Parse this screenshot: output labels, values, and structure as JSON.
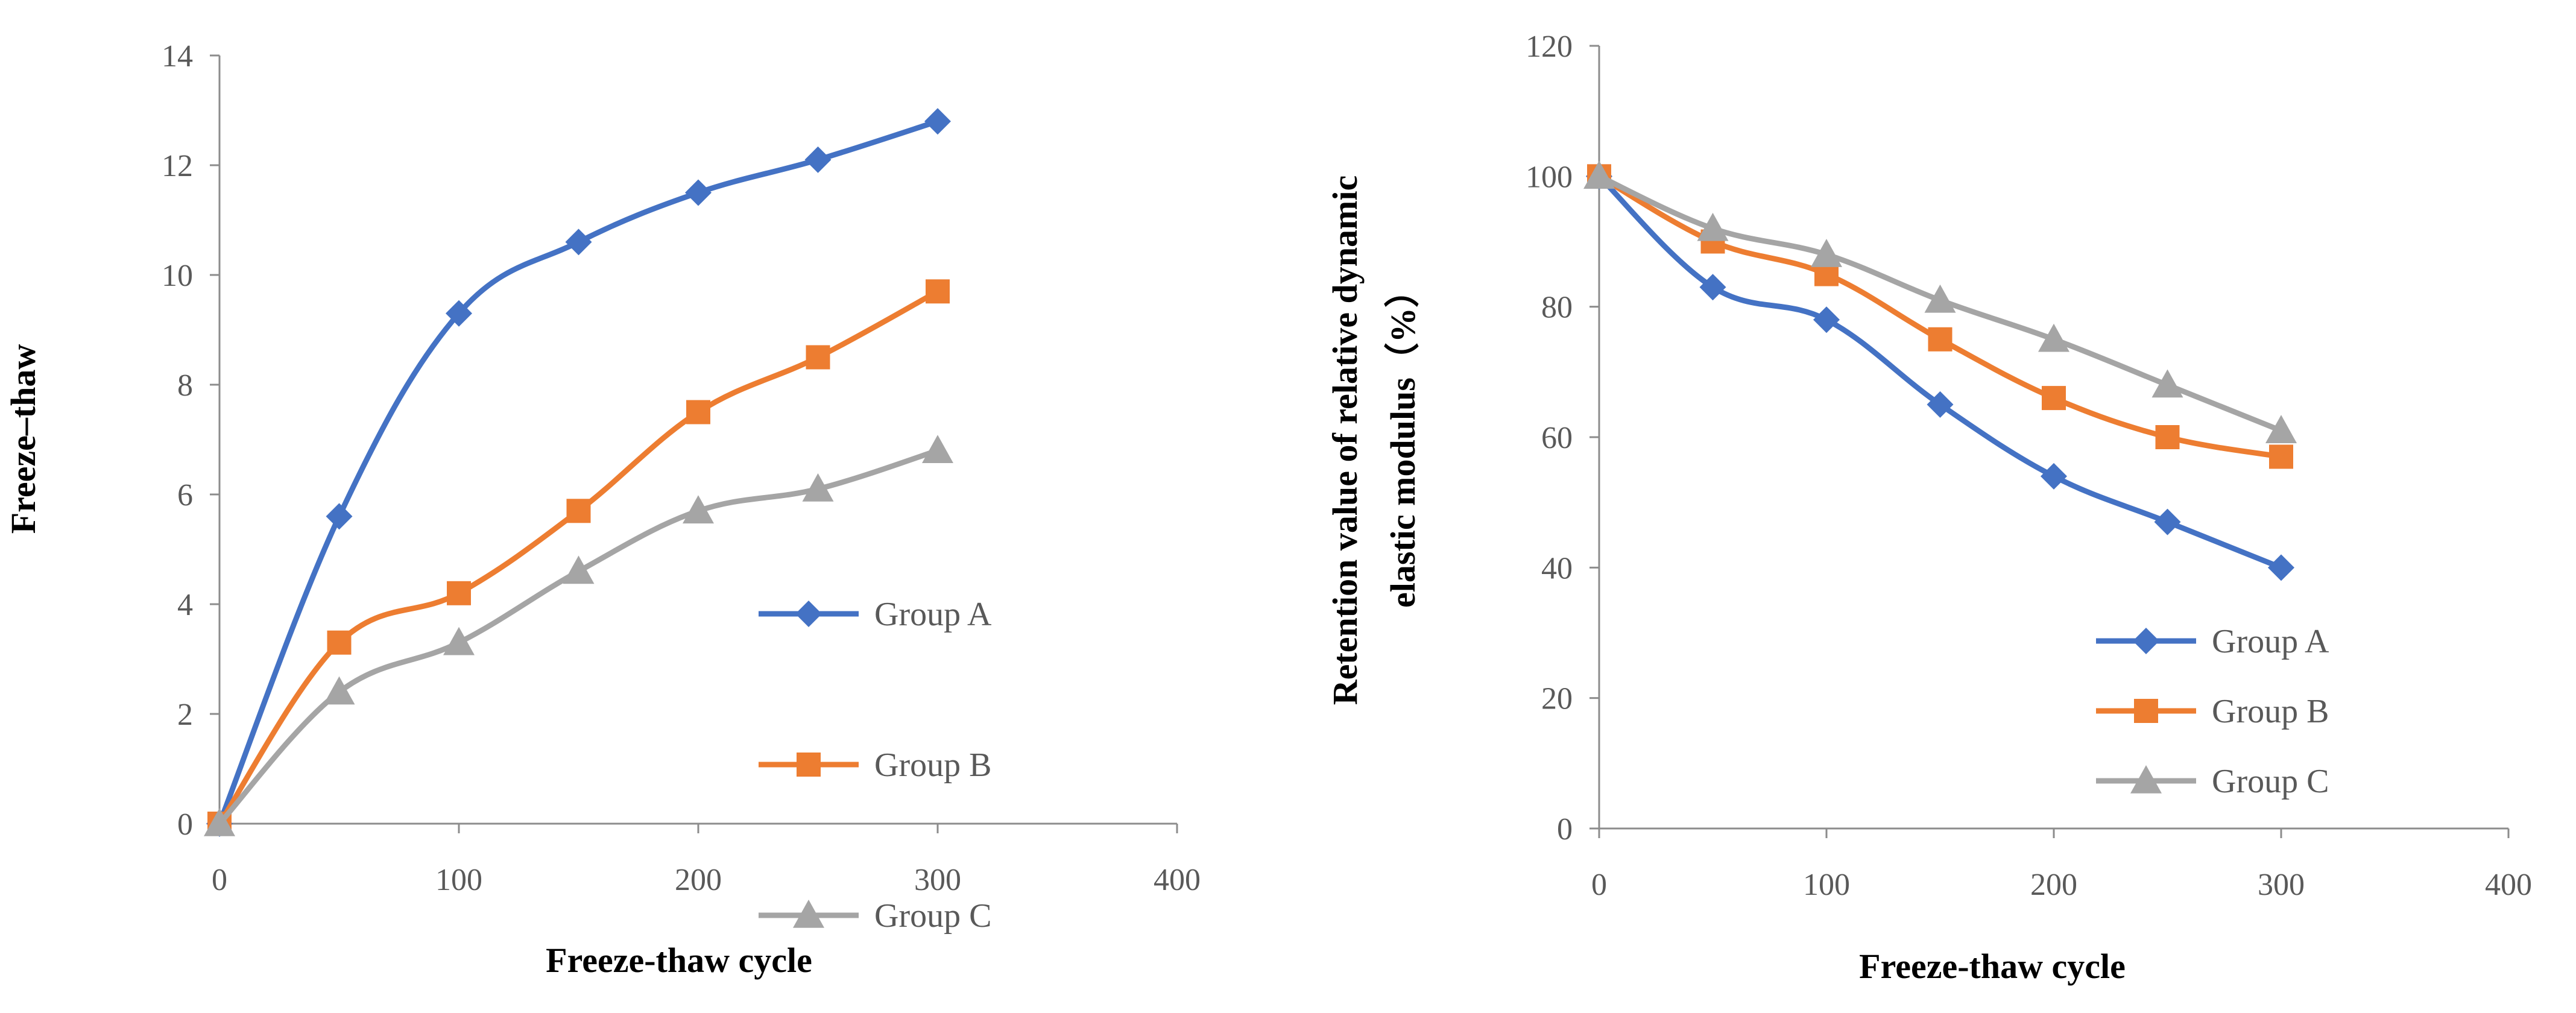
{
  "colors": {
    "group_a": "#4472C4",
    "group_b": "#ED7D31",
    "group_c": "#A5A5A5"
  },
  "chart_data": [
    {
      "type": "line",
      "title": "",
      "xlabel": "Freeze-thaw cycle",
      "ylabel": "Freeze–thaw",
      "xlim": [
        0,
        400
      ],
      "ylim": [
        0,
        14
      ],
      "x_ticks": [
        0,
        100,
        200,
        300,
        400
      ],
      "y_ticks": [
        0,
        2,
        4,
        6,
        8,
        10,
        12,
        14
      ],
      "x_tick_labels": [
        "0",
        "100",
        "200",
        "300",
        "400"
      ],
      "y_tick_labels": [
        "0",
        "2",
        "4",
        "6",
        "8",
        "10",
        "12",
        "14"
      ],
      "grid": false,
      "legend_position": "bottom-right",
      "x": [
        0,
        50,
        100,
        150,
        200,
        250,
        300
      ],
      "series": [
        {
          "name": "Group A",
          "marker": "diamond",
          "values": [
            0,
            5.6,
            9.3,
            10.6,
            11.5,
            12.1,
            12.8
          ]
        },
        {
          "name": "Group B",
          "marker": "square",
          "values": [
            0,
            3.3,
            4.2,
            5.7,
            7.5,
            8.5,
            9.7
          ]
        },
        {
          "name": "Group C",
          "marker": "triangle",
          "values": [
            0,
            2.4,
            3.3,
            4.6,
            5.7,
            6.1,
            6.8
          ]
        }
      ]
    },
    {
      "type": "line",
      "title": "",
      "xlabel": "Freeze-thaw cycle",
      "ylabel": "Retention value of  relative dynamic elastic modulus（%）",
      "ylabel_lines": [
        "Retention value of  relative dynamic",
        "elastic modulus（%）"
      ],
      "xlim": [
        0,
        400
      ],
      "ylim": [
        0,
        120
      ],
      "x_ticks": [
        0,
        100,
        200,
        300,
        400
      ],
      "y_ticks": [
        0,
        20,
        40,
        60,
        80,
        100,
        120
      ],
      "x_tick_labels": [
        "0",
        "100",
        "200",
        "300",
        "400"
      ],
      "y_tick_labels": [
        "0",
        "20",
        "40",
        "60",
        "80",
        "100",
        "120"
      ],
      "grid": false,
      "legend_position": "bottom-right",
      "x": [
        0,
        50,
        100,
        150,
        200,
        250,
        300
      ],
      "series": [
        {
          "name": "Group A",
          "marker": "diamond",
          "values": [
            100,
            83,
            78,
            65,
            54,
            47,
            40
          ]
        },
        {
          "name": "Group B",
          "marker": "square",
          "values": [
            100,
            90,
            85,
            75,
            66,
            60,
            57
          ]
        },
        {
          "name": "Group C",
          "marker": "triangle",
          "values": [
            100,
            92,
            88,
            81,
            75,
            68,
            61
          ]
        }
      ]
    }
  ]
}
